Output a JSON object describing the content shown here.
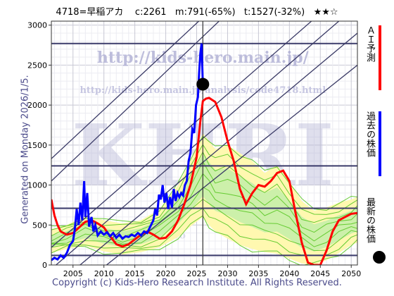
{
  "header": {
    "text": "4718=早稲アカ    c:2261   m:791(-65%)   t:1527(-32%)   ★★☆"
  },
  "side_text": "Generated on Monday 2026/1/5.",
  "watermark": {
    "url_main": "http://kids-hero.main.jp/",
    "url_sub": "http://kids-hero.main.jp/analysis/code4718.html",
    "big": "KHRI",
    "faint": "kids-hero"
  },
  "footer": "Copyright (c) Kids-Hero Research Institute. All Rights Reserved.",
  "legend": [
    {
      "label": "ＡＩ予測",
      "color": "#ff0000",
      "kind": "line"
    },
    {
      "label": "過去の株価",
      "color": "#0000ff",
      "kind": "line"
    },
    {
      "label": "最新の株価",
      "color": "#000000",
      "kind": "dot"
    }
  ],
  "colors": {
    "ai": "#ff0000",
    "past": "#0000ff",
    "band_green": "#66cc33",
    "band_green_fill": "#ccf0aa",
    "band_yellow_fill": "#fff8b0",
    "channel": "#3a3a66",
    "hline": "#3a3a6a"
  },
  "chart_data": {
    "type": "line",
    "xlim": [
      2001.5,
      2051
    ],
    "ylim": [
      0,
      3050
    ],
    "xticks": [
      2005,
      2010,
      2015,
      2020,
      2025,
      2030,
      2035,
      2040,
      2045,
      2050
    ],
    "yticks": [
      0,
      500,
      1000,
      1500,
      2000,
      2500,
      3000
    ],
    "grid": true,
    "latest": {
      "x": 2026.0,
      "y": 2261
    },
    "current_x": 2026.0,
    "hlines": [
      2770,
      1240,
      710,
      120
    ],
    "past_series": {
      "name": "過去の株価",
      "points": [
        [
          2001.5,
          60
        ],
        [
          2002.0,
          90
        ],
        [
          2002.5,
          70
        ],
        [
          2003.0,
          120
        ],
        [
          2003.5,
          90
        ],
        [
          2004.0,
          150
        ],
        [
          2004.5,
          250
        ],
        [
          2005.0,
          300
        ],
        [
          2005.3,
          450
        ],
        [
          2005.6,
          700
        ],
        [
          2005.9,
          500
        ],
        [
          2006.2,
          780
        ],
        [
          2006.5,
          560
        ],
        [
          2006.8,
          1050
        ],
        [
          2007.0,
          600
        ],
        [
          2007.3,
          900
        ],
        [
          2007.6,
          480
        ],
        [
          2008.0,
          600
        ],
        [
          2008.3,
          420
        ],
        [
          2008.6,
          500
        ],
        [
          2009.0,
          370
        ],
        [
          2009.5,
          420
        ],
        [
          2010.0,
          380
        ],
        [
          2010.5,
          410
        ],
        [
          2011.0,
          360
        ],
        [
          2011.5,
          400
        ],
        [
          2012.0,
          340
        ],
        [
          2012.5,
          380
        ],
        [
          2013.0,
          330
        ],
        [
          2013.5,
          360
        ],
        [
          2014.0,
          350
        ],
        [
          2014.5,
          380
        ],
        [
          2015.0,
          360
        ],
        [
          2015.5,
          400
        ],
        [
          2016.0,
          370
        ],
        [
          2016.5,
          420
        ],
        [
          2017.0,
          400
        ],
        [
          2017.5,
          480
        ],
        [
          2018.0,
          560
        ],
        [
          2018.3,
          700
        ],
        [
          2018.6,
          620
        ],
        [
          2018.9,
          880
        ],
        [
          2019.2,
          820
        ],
        [
          2019.5,
          1000
        ],
        [
          2019.8,
          780
        ],
        [
          2020.1,
          900
        ],
        [
          2020.4,
          700
        ],
        [
          2020.7,
          850
        ],
        [
          2021.0,
          720
        ],
        [
          2021.3,
          950
        ],
        [
          2021.6,
          800
        ],
        [
          2021.9,
          900
        ],
        [
          2022.2,
          850
        ],
        [
          2022.5,
          900
        ],
        [
          2022.8,
          870
        ],
        [
          2023.1,
          1000
        ],
        [
          2023.4,
          1050
        ],
        [
          2023.7,
          1300
        ],
        [
          2024.0,
          1400
        ],
        [
          2024.3,
          1700
        ],
        [
          2024.6,
          1650
        ],
        [
          2024.9,
          2000
        ],
        [
          2025.2,
          2100
        ],
        [
          2025.4,
          2400
        ],
        [
          2025.6,
          2650
        ],
        [
          2025.8,
          2770
        ],
        [
          2026.0,
          2261
        ]
      ]
    },
    "ai_series": {
      "name": "ＡＩ予測",
      "points": [
        [
          2001.5,
          820
        ],
        [
          2002.0,
          620
        ],
        [
          2002.5,
          500
        ],
        [
          2003.0,
          420
        ],
        [
          2004.0,
          380
        ],
        [
          2005.0,
          400
        ],
        [
          2006.0,
          470
        ],
        [
          2007.0,
          540
        ],
        [
          2008.0,
          560
        ],
        [
          2009.0,
          520
        ],
        [
          2010.0,
          470
        ],
        [
          2011.0,
          360
        ],
        [
          2012.0,
          260
        ],
        [
          2013.0,
          230
        ],
        [
          2014.0,
          260
        ],
        [
          2015.0,
          320
        ],
        [
          2016.0,
          380
        ],
        [
          2017.0,
          420
        ],
        [
          2018.0,
          380
        ],
        [
          2019.0,
          330
        ],
        [
          2020.0,
          340
        ],
        [
          2021.0,
          420
        ],
        [
          2022.0,
          560
        ],
        [
          2023.0,
          760
        ],
        [
          2024.0,
          1000
        ],
        [
          2025.0,
          1350
        ],
        [
          2025.6,
          1800
        ],
        [
          2026.0,
          2050
        ],
        [
          2026.5,
          2080
        ],
        [
          2027.0,
          2090
        ],
        [
          2028.0,
          2040
        ],
        [
          2029.0,
          1850
        ],
        [
          2030.0,
          1550
        ],
        [
          2031.0,
          1300
        ],
        [
          2032.0,
          950
        ],
        [
          2033.0,
          760
        ],
        [
          2034.0,
          900
        ],
        [
          2035.0,
          1000
        ],
        [
          2036.0,
          980
        ],
        [
          2037.0,
          1050
        ],
        [
          2038.0,
          1150
        ],
        [
          2039.0,
          1180
        ],
        [
          2040.0,
          1050
        ],
        [
          2041.0,
          650
        ],
        [
          2042.0,
          280
        ],
        [
          2043.0,
          30
        ],
        [
          2044.0,
          0
        ],
        [
          2045.0,
          0
        ],
        [
          2046.0,
          180
        ],
        [
          2047.0,
          420
        ],
        [
          2048.0,
          560
        ],
        [
          2049.0,
          600
        ],
        [
          2050.0,
          640
        ],
        [
          2051.0,
          650
        ]
      ]
    },
    "band_upper": {
      "points": [
        [
          2001.5,
          450
        ],
        [
          2004.0,
          500
        ],
        [
          2007.0,
          620
        ],
        [
          2010.0,
          560
        ],
        [
          2013.0,
          520
        ],
        [
          2016.0,
          560
        ],
        [
          2019.0,
          700
        ],
        [
          2022.0,
          1000
        ],
        [
          2024.0,
          1300
        ],
        [
          2026.0,
          1650
        ],
        [
          2027.0,
          1550
        ],
        [
          2028.0,
          1450
        ],
        [
          2030.0,
          1500
        ],
        [
          2032.0,
          1400
        ],
        [
          2034.0,
          1300
        ],
        [
          2036.0,
          1150
        ],
        [
          2038.0,
          1250
        ],
        [
          2040.0,
          1050
        ],
        [
          2042.0,
          800
        ],
        [
          2044.0,
          680
        ],
        [
          2046.0,
          720
        ],
        [
          2048.0,
          780
        ],
        [
          2050.0,
          820
        ],
        [
          2051.0,
          850
        ]
      ]
    },
    "band_lower": {
      "points": [
        [
          2001.5,
          150
        ],
        [
          2004.0,
          200
        ],
        [
          2007.0,
          240
        ],
        [
          2010.0,
          170
        ],
        [
          2013.0,
          130
        ],
        [
          2016.0,
          160
        ],
        [
          2019.0,
          220
        ],
        [
          2022.0,
          350
        ],
        [
          2024.0,
          480
        ],
        [
          2026.0,
          600
        ],
        [
          2027.0,
          500
        ],
        [
          2028.0,
          420
        ],
        [
          2030.0,
          330
        ],
        [
          2032.0,
          250
        ],
        [
          2034.0,
          200
        ],
        [
          2036.0,
          160
        ],
        [
          2038.0,
          140
        ],
        [
          2040.0,
          80
        ],
        [
          2042.0,
          20
        ],
        [
          2044.0,
          0
        ],
        [
          2046.0,
          60
        ],
        [
          2048.0,
          150
        ],
        [
          2050.0,
          250
        ],
        [
          2051.0,
          280
        ]
      ]
    },
    "channel_lines": [
      {
        "p1": [
          2001.5,
          1330
        ],
        "p2": [
          2051,
          4900
        ]
      },
      {
        "p1": [
          2001.5,
          1050
        ],
        "p2": [
          2051,
          4700
        ]
      },
      {
        "p1": [
          2001.5,
          220
        ],
        "p2": [
          2051,
          3550
        ]
      },
      {
        "p1": [
          2001.5,
          -50
        ],
        "p2": [
          2051,
          3250
        ]
      },
      {
        "p1": [
          2001.5,
          -300
        ],
        "p2": [
          2051,
          2900
        ]
      },
      {
        "p1": [
          2001.5,
          -550
        ],
        "p2": [
          2051,
          2500
        ]
      }
    ]
  }
}
